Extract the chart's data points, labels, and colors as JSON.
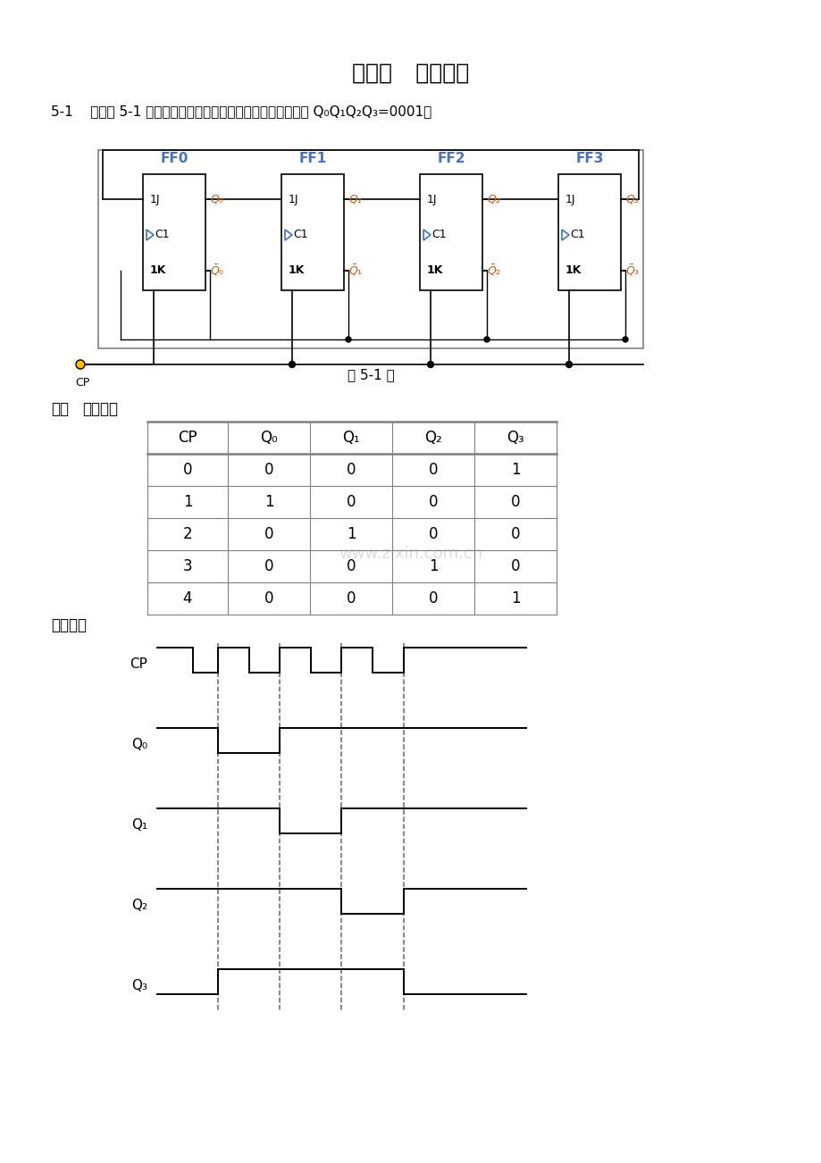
{
  "title": "第五章   习题答案",
  "problem_text": "5-1    分析题 5-1 图所示电路，画出时序图和状态图，起始状态 Q₀Q₁Q₂Q₃=0001。",
  "circuit_caption": "题 5-1 图",
  "solution_label_bold": "解：",
  "solution_label_normal": "状态图：",
  "timing_label": "时序图：",
  "table_headers": [
    "CP",
    "Q₀",
    "Q₁",
    "Q₂",
    "Q₃"
  ],
  "table_data": [
    [
      0,
      0,
      0,
      0,
      1
    ],
    [
      1,
      1,
      0,
      0,
      0
    ],
    [
      2,
      0,
      1,
      0,
      0
    ],
    [
      3,
      0,
      0,
      1,
      0
    ],
    [
      4,
      0,
      0,
      0,
      1
    ]
  ],
  "ff_labels": [
    "FF0",
    "FF1",
    "FF2",
    "FF3"
  ],
  "bg_color": "#ffffff",
  "text_color": "#000000",
  "line_color": "#000000",
  "box_stroke": "#4472c4",
  "q_label_color": "#c55a11",
  "clock_tri_color": "#4472c4",
  "dashed_color": "#666666",
  "table_line_color": "#7f7f7f",
  "cp_circle_color": "#ffc000",
  "outer_box_color": "#7f7f7f"
}
